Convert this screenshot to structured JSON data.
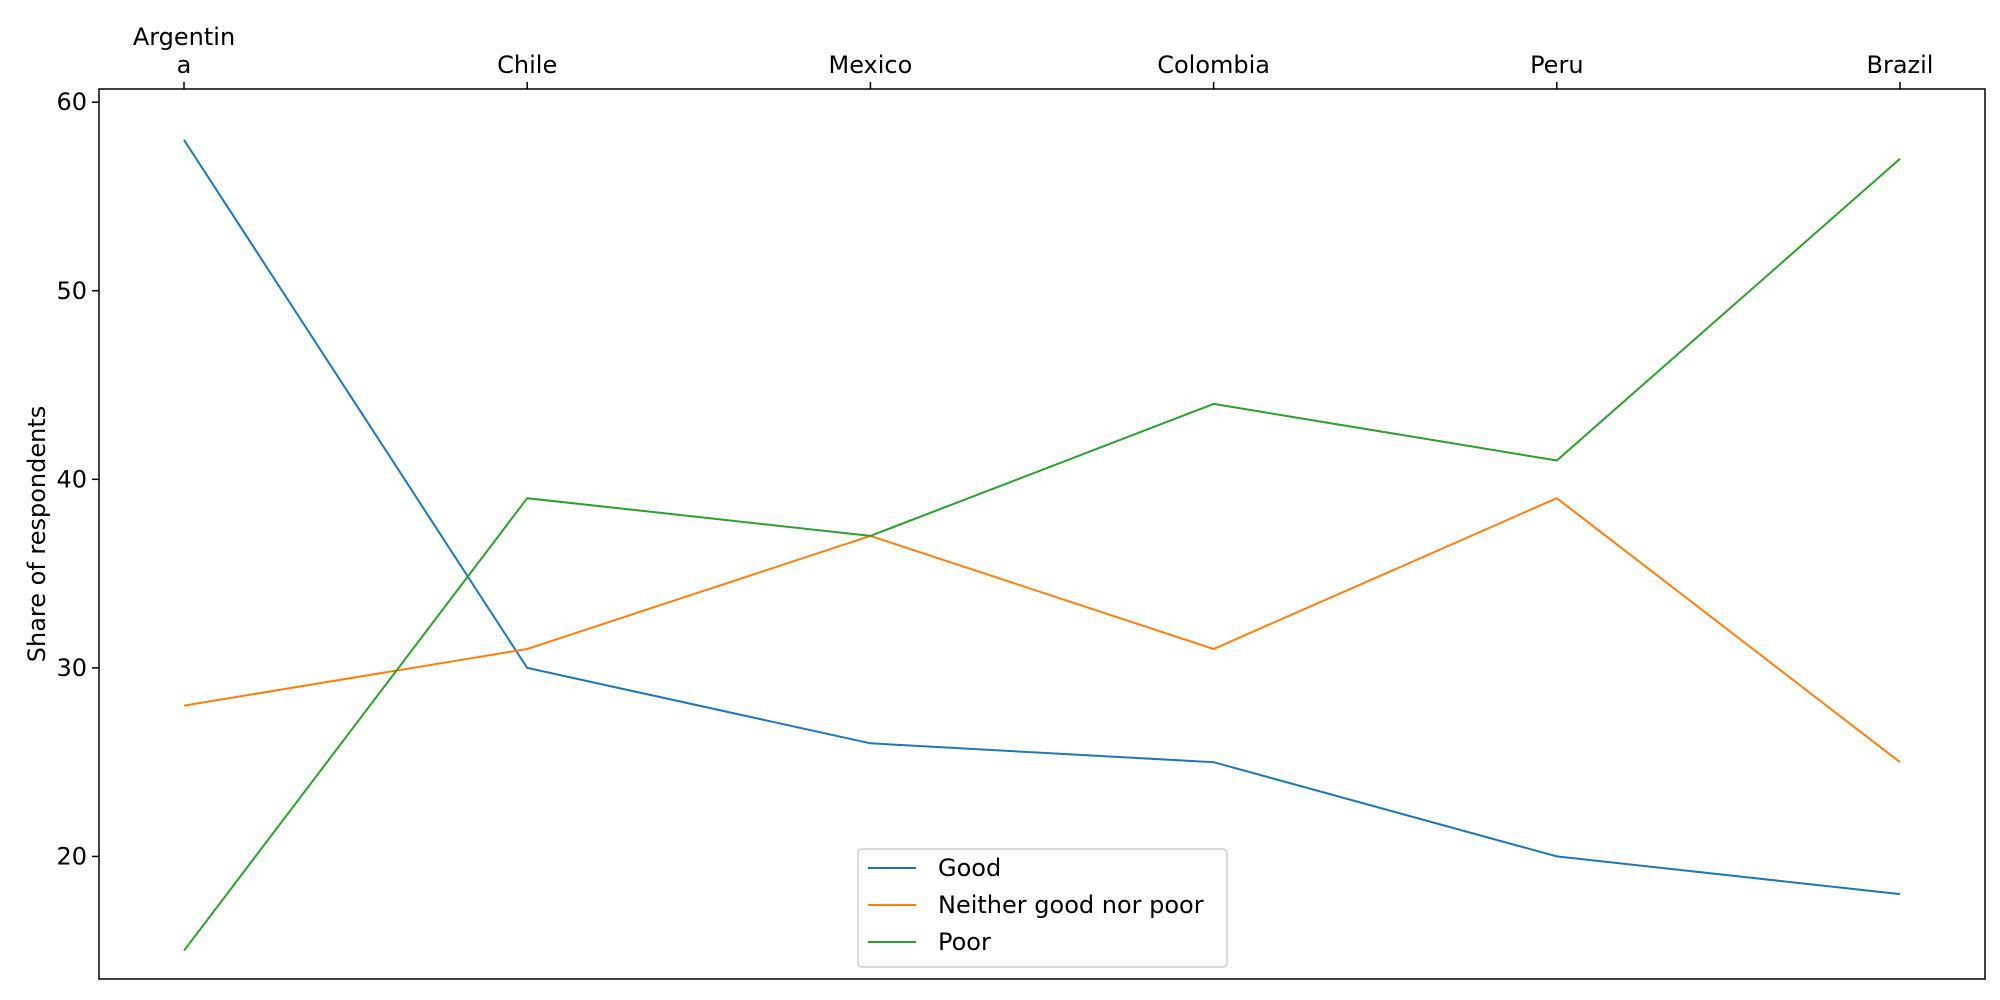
{
  "chart_data": {
    "type": "line",
    "categories": [
      "Argentin\na",
      "Chile",
      "Mexico",
      "Colombia",
      "Peru",
      "Brazil"
    ],
    "series": [
      {
        "name": "Good",
        "color": "#1f77b4",
        "values": [
          58,
          30,
          26,
          25,
          20,
          18
        ]
      },
      {
        "name": "Neither good nor poor",
        "color": "#ff7f0e",
        "values": [
          28,
          31,
          37,
          31,
          39,
          25
        ]
      },
      {
        "name": "Poor",
        "color": "#2ca02c",
        "values": [
          15,
          39,
          37,
          44,
          41,
          57
        ]
      }
    ],
    "ylabel": "Share of respondents",
    "ylim": [
      13.5,
      60.7
    ],
    "yticks": [
      20,
      30,
      40,
      50,
      60
    ],
    "x_tick_position": "top",
    "grid": false,
    "legend_position": "lower center"
  }
}
